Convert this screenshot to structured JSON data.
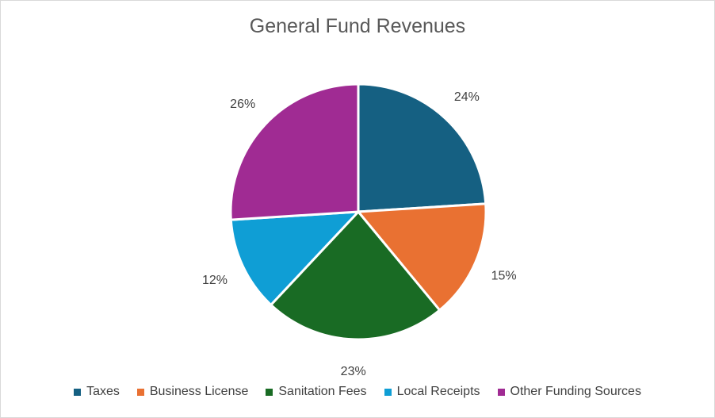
{
  "chart_data": {
    "type": "pie",
    "title": "General Fund Revenues",
    "categories": [
      "Taxes",
      "Business License",
      "Sanitation Fees",
      "Local Receipts",
      "Other Funding Sources"
    ],
    "values": [
      24,
      15,
      23,
      12,
      26
    ],
    "labels": [
      "24%",
      "15%",
      "23%",
      "12%",
      "26%"
    ],
    "colors": [
      "#156082",
      "#E97132",
      "#196B24",
      "#0F9ED5",
      "#A02B93"
    ],
    "legend_position": "bottom"
  }
}
